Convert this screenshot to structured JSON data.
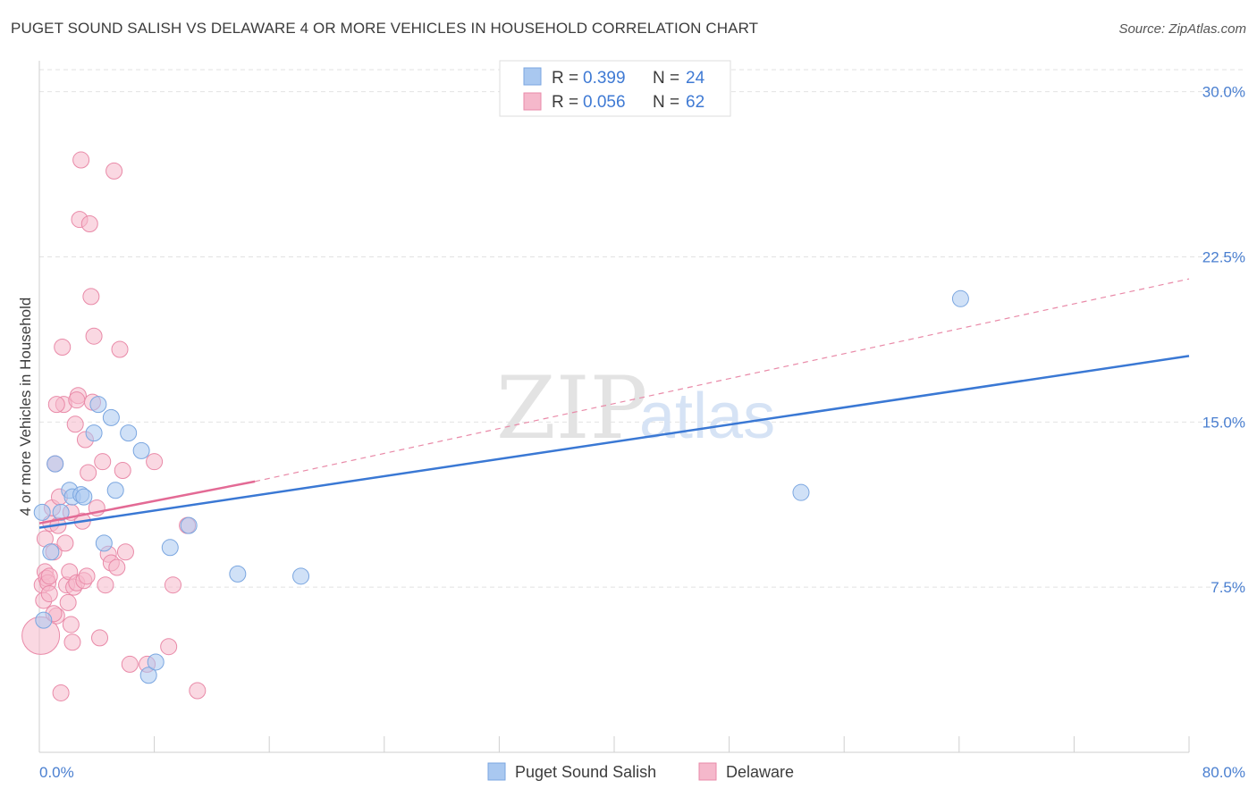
{
  "title": "PUGET SOUND SALISH VS DELAWARE 4 OR MORE VEHICLES IN HOUSEHOLD CORRELATION CHART",
  "source": "Source: ZipAtlas.com",
  "watermark": {
    "zip": "ZIP",
    "atlas": "atlas"
  },
  "legend": {
    "rows": [
      {
        "r_label": "R =",
        "r_value": "0.399",
        "n_label": "N =",
        "n_value": "24",
        "color": "#a9c8f0"
      },
      {
        "r_label": "R =",
        "r_value": "0.056",
        "n_label": "N =",
        "n_value": "62",
        "color": "#f5b8cb"
      }
    ]
  },
  "bottom_legend": [
    {
      "label": "Puget Sound Salish",
      "color": "#a9c8f0"
    },
    {
      "label": "Delaware",
      "color": "#f5b8cb"
    }
  ],
  "chart_data": {
    "type": "scatter",
    "xlabel": "",
    "ylabel": "4 or more Vehicles in Household",
    "xlim": [
      0,
      80
    ],
    "ylim": [
      0,
      31
    ],
    "x_tick_labels": [
      "0.0%",
      "80.0%"
    ],
    "y_ticks": [
      7.5,
      15.0,
      22.5,
      30.0
    ],
    "y_tick_labels": [
      "7.5%",
      "15.0%",
      "22.5%",
      "30.0%"
    ],
    "grid": true,
    "series": [
      {
        "name": "Puget Sound Salish",
        "color": "#a9c8f0",
        "stroke": "#7aa6e0",
        "points": [
          [
            0.2,
            10.9
          ],
          [
            0.3,
            6.0
          ],
          [
            0.8,
            9.1
          ],
          [
            1.1,
            13.1
          ],
          [
            1.5,
            10.9
          ],
          [
            2.1,
            11.9
          ],
          [
            2.3,
            11.6
          ],
          [
            2.9,
            11.7
          ],
          [
            3.1,
            11.6
          ],
          [
            3.8,
            14.5
          ],
          [
            4.1,
            15.8
          ],
          [
            4.5,
            9.5
          ],
          [
            5.0,
            15.2
          ],
          [
            5.3,
            11.9
          ],
          [
            6.2,
            14.5
          ],
          [
            7.1,
            13.7
          ],
          [
            7.6,
            3.5
          ],
          [
            8.1,
            4.1
          ],
          [
            9.1,
            9.3
          ],
          [
            10.4,
            10.3
          ],
          [
            13.8,
            8.1
          ],
          [
            18.2,
            8.0
          ],
          [
            53.0,
            11.8
          ],
          [
            64.1,
            20.6
          ]
        ],
        "trend": {
          "x0": 0,
          "y0": 10.2,
          "x1": 80,
          "y1": 18.0,
          "style": "solid"
        }
      },
      {
        "name": "Delaware",
        "color": "#f5b8cb",
        "stroke": "#e98aa8",
        "points": [
          [
            0.1,
            5.3
          ],
          [
            0.2,
            7.6
          ],
          [
            0.3,
            6.9
          ],
          [
            0.4,
            8.2
          ],
          [
            0.5,
            7.9
          ],
          [
            0.6,
            7.7
          ],
          [
            0.7,
            8.0
          ],
          [
            0.8,
            10.4
          ],
          [
            0.9,
            11.1
          ],
          [
            1.0,
            9.1
          ],
          [
            1.1,
            13.1
          ],
          [
            1.2,
            6.2
          ],
          [
            1.3,
            10.3
          ],
          [
            1.4,
            11.6
          ],
          [
            1.5,
            2.7
          ],
          [
            1.6,
            18.4
          ],
          [
            1.7,
            15.8
          ],
          [
            1.8,
            9.5
          ],
          [
            1.9,
            7.6
          ],
          [
            2.0,
            6.8
          ],
          [
            2.1,
            8.2
          ],
          [
            2.2,
            5.8
          ],
          [
            2.3,
            5.0
          ],
          [
            2.4,
            7.5
          ],
          [
            2.5,
            14.9
          ],
          [
            2.6,
            7.7
          ],
          [
            2.7,
            16.2
          ],
          [
            2.8,
            24.2
          ],
          [
            2.9,
            26.9
          ],
          [
            3.0,
            10.5
          ],
          [
            3.1,
            7.8
          ],
          [
            3.2,
            14.2
          ],
          [
            3.3,
            8.0
          ],
          [
            3.4,
            12.7
          ],
          [
            3.5,
            24.0
          ],
          [
            3.6,
            20.7
          ],
          [
            3.8,
            18.9
          ],
          [
            4.0,
            11.1
          ],
          [
            4.2,
            5.2
          ],
          [
            4.4,
            13.2
          ],
          [
            4.6,
            7.6
          ],
          [
            4.8,
            9.0
          ],
          [
            5.0,
            8.6
          ],
          [
            5.2,
            26.4
          ],
          [
            5.4,
            8.4
          ],
          [
            5.6,
            18.3
          ],
          [
            5.8,
            12.8
          ],
          [
            6.0,
            9.1
          ],
          [
            6.3,
            4.0
          ],
          [
            7.5,
            4.0
          ],
          [
            8.0,
            13.2
          ],
          [
            9.0,
            4.8
          ],
          [
            9.3,
            7.6
          ],
          [
            10.3,
            10.3
          ],
          [
            11.0,
            2.8
          ],
          [
            1.2,
            15.8
          ],
          [
            2.2,
            10.9
          ],
          [
            0.7,
            7.2
          ],
          [
            1.0,
            6.3
          ],
          [
            3.7,
            15.9
          ],
          [
            2.6,
            16.0
          ],
          [
            0.4,
            9.7
          ]
        ],
        "trend": {
          "x0": 0,
          "y0": 10.4,
          "x1": 15,
          "y1": 12.3,
          "style": "solid"
        },
        "trend_extension": {
          "x0": 15,
          "y0": 12.3,
          "x1": 80,
          "y1": 21.5,
          "style": "dashed"
        }
      }
    ]
  }
}
